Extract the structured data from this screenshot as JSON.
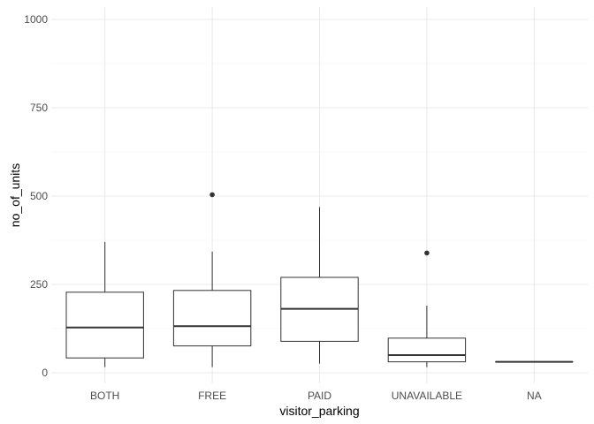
{
  "chart_data": {
    "type": "boxplot",
    "xlabel": "visitor_parking",
    "ylabel": "no_of_units",
    "ylim": [
      -30,
      1035
    ],
    "yticks": [
      0,
      250,
      500,
      750,
      1000
    ],
    "ytick_labels": [
      "0",
      "250",
      "500",
      "750",
      "1000"
    ],
    "grid": true,
    "categories": [
      "BOTH",
      "FREE",
      "PAID",
      "UNAVAILABLE",
      "NA"
    ],
    "boxes": [
      {
        "category": "BOTH",
        "whisker_low": 16,
        "q1": 42,
        "median": 128,
        "q3": 228,
        "whisker_high": 370,
        "outliers": []
      },
      {
        "category": "FREE",
        "whisker_low": 16,
        "q1": 76,
        "median": 132,
        "q3": 233,
        "whisker_high": 343,
        "outliers": [
          504
        ]
      },
      {
        "category": "PAID",
        "whisker_low": 26,
        "q1": 89,
        "median": 181,
        "q3": 270,
        "whisker_high": 469,
        "outliers": []
      },
      {
        "category": "UNAVAILABLE",
        "whisker_low": 16,
        "q1": 31,
        "median": 50,
        "q3": 98,
        "whisker_high": 190,
        "outliers": [
          339
        ]
      },
      {
        "category": "NA",
        "whisker_low": 31,
        "q1": 31,
        "median": 31,
        "q3": 31,
        "whisker_high": 31,
        "outliers": []
      }
    ]
  },
  "colors": {
    "grid_major": "#ebebeb",
    "grid_minor": "#f5f5f5",
    "box_line": "#333333",
    "box_fill": "#ffffff",
    "outlier": "#333333"
  }
}
